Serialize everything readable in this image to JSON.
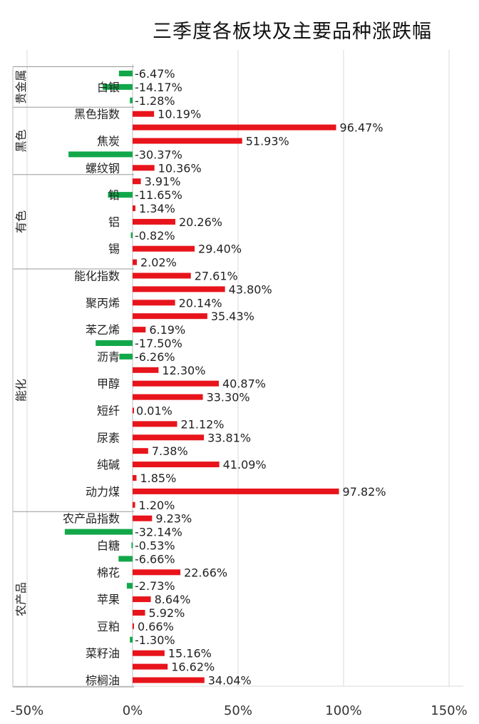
{
  "chart_data": {
    "type": "bar",
    "orientation": "horizontal",
    "title": "三季度各板块及主要品种涨跌幅",
    "x_tick_labels": [
      "-50%",
      "0%",
      "50%",
      "100%",
      "150%"
    ],
    "x_ticks": [
      -50,
      0,
      50,
      100,
      150
    ],
    "xlim": [
      -50,
      150
    ],
    "grid": true,
    "legend": "none",
    "colors": {
      "positive": "#e8141b",
      "negative": "#12a84a",
      "grid": "#d9d9d9"
    },
    "groups": [
      {
        "name": "贵金属",
        "bars": [
          {
            "label": "",
            "value": -6.47,
            "text": "-6.47%"
          },
          {
            "label": "白银",
            "value": -14.17,
            "text": "-14.17%"
          },
          {
            "label": "",
            "value": -1.28,
            "text": "-1.28%"
          }
        ]
      },
      {
        "name": "黑色",
        "bars": [
          {
            "label": "黑色指数",
            "value": 10.19,
            "text": "10.19%"
          },
          {
            "label": "",
            "value": 96.47,
            "text": "96.47%"
          },
          {
            "label": "焦炭",
            "value": 51.93,
            "text": "51.93%"
          },
          {
            "label": "",
            "value": -30.37,
            "text": "-30.37%"
          },
          {
            "label": "螺纹钢",
            "value": 10.36,
            "text": "10.36%"
          }
        ]
      },
      {
        "name": "有色",
        "bars": [
          {
            "label": "",
            "value": 3.91,
            "text": "3.91%"
          },
          {
            "label": "铅",
            "value": -11.65,
            "text": "-11.65%"
          },
          {
            "label": "",
            "value": 1.34,
            "text": "1.34%"
          },
          {
            "label": "铝",
            "value": 20.26,
            "text": "20.26%"
          },
          {
            "label": "",
            "value": -0.82,
            "text": "-0.82%"
          },
          {
            "label": "锡",
            "value": 29.4,
            "text": "29.40%"
          },
          {
            "label": "",
            "value": 2.02,
            "text": "2.02%"
          }
        ]
      },
      {
        "name": "能化",
        "bars": [
          {
            "label": "能化指数",
            "value": 27.61,
            "text": "27.61%"
          },
          {
            "label": "",
            "value": 43.8,
            "text": "43.80%"
          },
          {
            "label": "聚丙烯",
            "value": 20.14,
            "text": "20.14%"
          },
          {
            "label": "",
            "value": 35.43,
            "text": "35.43%"
          },
          {
            "label": "苯乙烯",
            "value": 6.19,
            "text": "6.19%"
          },
          {
            "label": "",
            "value": -17.5,
            "text": "-17.50%"
          },
          {
            "label": "沥青",
            "value": -6.26,
            "text": "-6.26%"
          },
          {
            "label": "",
            "value": 12.3,
            "text": "12.30%"
          },
          {
            "label": "甲醇",
            "value": 40.87,
            "text": "40.87%"
          },
          {
            "label": "",
            "value": 33.3,
            "text": "33.30%"
          },
          {
            "label": "短纤",
            "value": 0.01,
            "text": "0.01%"
          },
          {
            "label": "",
            "value": 21.12,
            "text": "21.12%"
          },
          {
            "label": "尿素",
            "value": 33.81,
            "text": "33.81%"
          },
          {
            "label": "",
            "value": 7.38,
            "text": "7.38%"
          },
          {
            "label": "纯碱",
            "value": 41.09,
            "text": "41.09%"
          },
          {
            "label": "",
            "value": 1.85,
            "text": "1.85%"
          },
          {
            "label": "动力煤",
            "value": 97.82,
            "text": "97.82%"
          },
          {
            "label": "",
            "value": 1.2,
            "text": "1.20%"
          }
        ]
      },
      {
        "name": "农产品",
        "bars": [
          {
            "label": "农产品指数",
            "value": 9.23,
            "text": "9.23%"
          },
          {
            "label": "",
            "value": -32.14,
            "text": "-32.14%"
          },
          {
            "label": "白糖",
            "value": -0.53,
            "text": "-0.53%"
          },
          {
            "label": "",
            "value": -6.66,
            "text": "-6.66%"
          },
          {
            "label": "棉花",
            "value": 22.66,
            "text": "22.66%"
          },
          {
            "label": "",
            "value": -2.73,
            "text": "-2.73%"
          },
          {
            "label": "苹果",
            "value": 8.64,
            "text": "8.64%"
          },
          {
            "label": "",
            "value": 5.92,
            "text": "5.92%"
          },
          {
            "label": "豆粕",
            "value": 0.66,
            "text": "0.66%"
          },
          {
            "label": "",
            "value": -1.3,
            "text": "-1.30%"
          },
          {
            "label": "菜籽油",
            "value": 15.16,
            "text": "15.16%"
          },
          {
            "label": "",
            "value": 16.62,
            "text": "16.62%"
          },
          {
            "label": "棕榈油",
            "value": 34.04,
            "text": "34.04%"
          }
        ]
      }
    ]
  }
}
